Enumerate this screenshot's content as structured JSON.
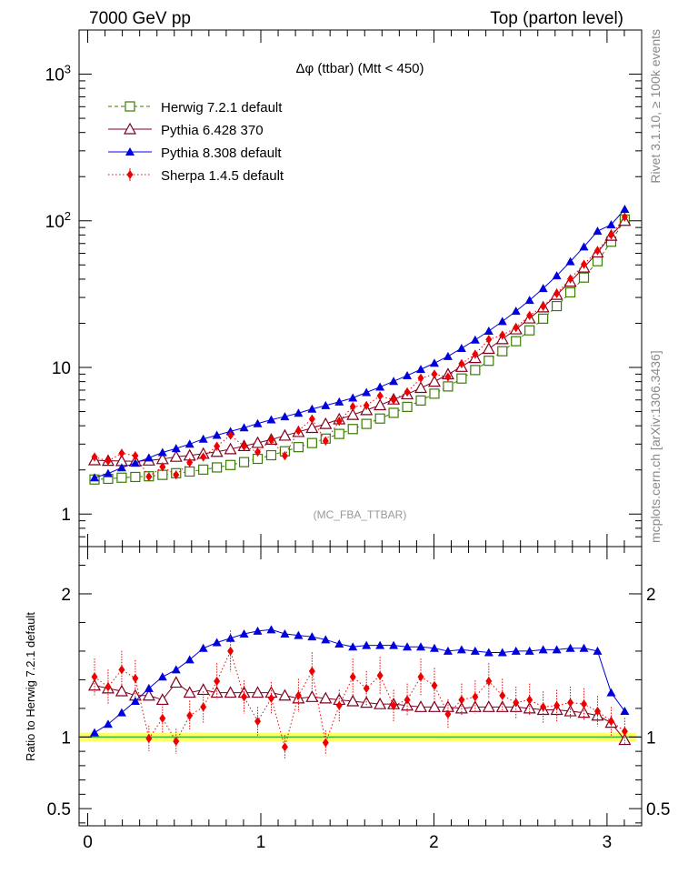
{
  "header": {
    "left": "7000 GeV pp",
    "right": "Top (parton level)"
  },
  "side_labels": {
    "top": "Rivet 3.1.10, ≥ 100k events",
    "bottom": "mcplots.cern.ch [arXiv:1306.3436]"
  },
  "colors": {
    "herwig": "#3a7d00",
    "pythia6": "#800020",
    "pythia8": "#0000dd",
    "sherpa": "#ee0000",
    "band_fill": "#ffff66",
    "band_line": "#33bb33"
  },
  "chart_data": [
    {
      "type": "scatter",
      "panel": "main",
      "title": "Δφ (ttbar) (Mtt < 450)",
      "watermark": "(MC_FBA_TTBAR)",
      "yscale": "log",
      "xlim": [
        -0.05,
        3.2
      ],
      "ylim": [
        0.6,
        2000
      ],
      "y_ticks": [
        {
          "v": 1,
          "label": "1"
        },
        {
          "v": 10,
          "label": "10"
        },
        {
          "v": 100,
          "label": "10",
          "sup": "2"
        },
        {
          "v": 1000,
          "label": "10",
          "sup": "3"
        }
      ],
      "legend_position": "top-left",
      "x": [
        0.0393,
        0.1178,
        0.1963,
        0.2749,
        0.3534,
        0.432,
        0.5105,
        0.589,
        0.6676,
        0.7461,
        0.8247,
        0.9032,
        0.9817,
        1.0603,
        1.1388,
        1.2174,
        1.2959,
        1.3744,
        1.453,
        1.5315,
        1.6101,
        1.6886,
        1.7671,
        1.8457,
        1.9242,
        2.0028,
        2.0813,
        2.1598,
        2.2384,
        2.3169,
        2.3955,
        2.474,
        2.5525,
        2.6311,
        2.7096,
        2.7882,
        2.8667,
        2.9452,
        3.0238,
        3.1023
      ],
      "series": [
        {
          "name": "Herwig 7.2.1 default",
          "marker": "open-square",
          "line": "dashed",
          "values": [
            1.72,
            1.74,
            1.77,
            1.79,
            1.81,
            1.85,
            1.9,
            1.95,
            2.01,
            2.08,
            2.16,
            2.26,
            2.38,
            2.52,
            2.68,
            2.86,
            3.05,
            3.27,
            3.52,
            3.8,
            4.12,
            4.48,
            4.9,
            5.38,
            5.95,
            6.62,
            7.42,
            8.4,
            9.6,
            11.1,
            12.9,
            15.1,
            17.9,
            21.5,
            26.2,
            32.5,
            41.0,
            53.0,
            72.0,
            102.0
          ]
        },
        {
          "name": "Pythia 6.428 370",
          "marker": "open-triangle",
          "line": "solid",
          "values": [
            2.33,
            2.31,
            2.3,
            2.29,
            2.32,
            2.37,
            2.46,
            2.51,
            2.58,
            2.66,
            2.77,
            2.91,
            3.06,
            3.22,
            3.43,
            3.63,
            3.87,
            4.12,
            4.43,
            4.75,
            5.12,
            5.53,
            6.05,
            6.57,
            7.25,
            8.0,
            8.98,
            10.1,
            11.6,
            13.4,
            15.6,
            18.2,
            21.6,
            25.7,
            31.3,
            38.5,
            48.0,
            60.9,
            79.2,
            100.0
          ]
        },
        {
          "name": "Pythia 8.308 default",
          "marker": "filled-triangle",
          "line": "solid",
          "values": [
            1.77,
            1.89,
            2.07,
            2.23,
            2.42,
            2.63,
            2.8,
            3.0,
            3.25,
            3.45,
            3.66,
            3.88,
            4.14,
            4.4,
            4.62,
            4.88,
            5.2,
            5.5,
            5.82,
            6.2,
            6.75,
            7.35,
            8.05,
            8.8,
            9.7,
            10.7,
            11.9,
            13.5,
            15.4,
            17.7,
            20.6,
            24.2,
            28.7,
            34.6,
            42.2,
            52.7,
            66.5,
            85.0,
            94.0,
            120.0
          ]
        },
        {
          "name": "Sherpa 1.4.5 default",
          "marker": "filled-diamond",
          "line": "dotted",
          "values": [
            2.45,
            2.3,
            2.6,
            2.5,
            1.8,
            2.1,
            1.85,
            2.25,
            2.45,
            2.9,
            3.45,
            2.9,
            2.65,
            3.2,
            2.5,
            3.7,
            4.45,
            3.15,
            4.3,
            5.4,
            5.5,
            6.4,
            6.0,
            6.8,
            8.45,
            9.0,
            8.6,
            10.6,
            12.3,
            15.5,
            16.6,
            18.7,
            22.6,
            26.1,
            31.9,
            40.2,
            50.5,
            62.5,
            80.1,
            106.0
          ]
        }
      ]
    },
    {
      "type": "scatter",
      "panel": "ratio",
      "ylabel": "Ratio to Herwig 7.2.1 default",
      "xlim": [
        -0.05,
        3.2
      ],
      "ylim": [
        0.38,
        2.33
      ],
      "y_ticks": [
        {
          "v": 0.5,
          "label": "0.5"
        },
        {
          "v": 1,
          "label": "1"
        },
        {
          "v": 2,
          "label": "2"
        }
      ],
      "x_ticks": [
        {
          "v": 0,
          "label": "0"
        },
        {
          "v": 1,
          "label": "1"
        },
        {
          "v": 2,
          "label": "2"
        },
        {
          "v": 3,
          "label": "3"
        }
      ],
      "reference_band": [
        0.97,
        1.03
      ],
      "series": [
        {
          "name": "Pythia 6.428 370",
          "values": [
            1.36,
            1.34,
            1.32,
            1.29,
            1.29,
            1.26,
            1.38,
            1.31,
            1.33,
            1.31,
            1.31,
            1.31,
            1.31,
            1.31,
            1.29,
            1.27,
            1.28,
            1.27,
            1.26,
            1.25,
            1.24,
            1.23,
            1.23,
            1.22,
            1.21,
            1.21,
            1.21,
            1.2,
            1.21,
            1.21,
            1.21,
            1.21,
            1.2,
            1.19,
            1.19,
            1.18,
            1.17,
            1.15,
            1.1,
            0.98
          ]
        },
        {
          "name": "Pythia 8.308 default",
          "values": [
            1.03,
            1.09,
            1.17,
            1.25,
            1.34,
            1.42,
            1.47,
            1.54,
            1.62,
            1.66,
            1.69,
            1.72,
            1.74,
            1.75,
            1.72,
            1.71,
            1.7,
            1.68,
            1.65,
            1.63,
            1.64,
            1.64,
            1.64,
            1.63,
            1.63,
            1.62,
            1.6,
            1.61,
            1.6,
            1.59,
            1.59,
            1.6,
            1.6,
            1.61,
            1.61,
            1.62,
            1.62,
            1.6,
            1.31,
            1.18
          ]
        },
        {
          "name": "Sherpa 1.4.5 default",
          "values": [
            1.42,
            1.35,
            1.47,
            1.41,
            0.99,
            1.13,
            0.97,
            1.15,
            1.21,
            1.39,
            1.6,
            1.28,
            1.11,
            1.27,
            0.93,
            1.29,
            1.46,
            0.96,
            1.22,
            1.42,
            1.34,
            1.43,
            1.22,
            1.26,
            1.42,
            1.36,
            1.16,
            1.26,
            1.28,
            1.39,
            1.29,
            1.24,
            1.26,
            1.21,
            1.22,
            1.24,
            1.23,
            1.18,
            1.11,
            1.04
          ]
        }
      ]
    }
  ]
}
